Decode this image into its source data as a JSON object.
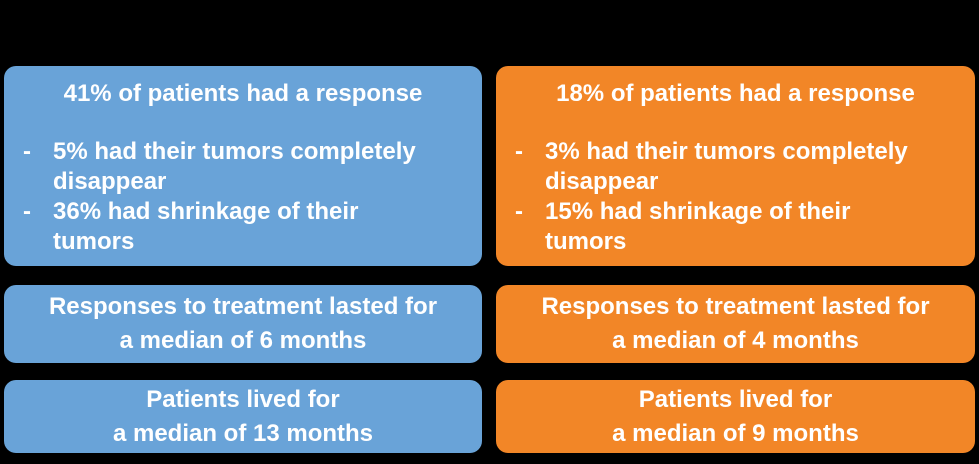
{
  "canvas": {
    "background_color": "#000000",
    "text_color": "#FFFFFF"
  },
  "bullet_char": "-",
  "columns": [
    {
      "id": "blue-treatment",
      "color": "#69A3D8",
      "response_card": {
        "heading": "41% of patients had a response",
        "bullets": [
          "5% had their tumors completely\ndisappear",
          "36% had shrinkage of their\ntumors"
        ]
      },
      "duration_card": {
        "line1": "Responses to treatment lasted for",
        "line2": "a median of 6 months"
      },
      "survival_card": {
        "line1": "Patients lived for",
        "line2": "a median of 13 months"
      }
    },
    {
      "id": "orange-treatment",
      "color": "#F28627",
      "response_card": {
        "heading": "18% of patients had a response",
        "bullets": [
          "3% had their tumors completely\ndisappear",
          "15% had shrinkage of their\ntumors"
        ]
      },
      "duration_card": {
        "line1": "Responses to treatment lasted for",
        "line2": "a median of 4 months"
      },
      "survival_card": {
        "line1": "Patients lived for",
        "line2": "a median of 9 months"
      }
    }
  ]
}
